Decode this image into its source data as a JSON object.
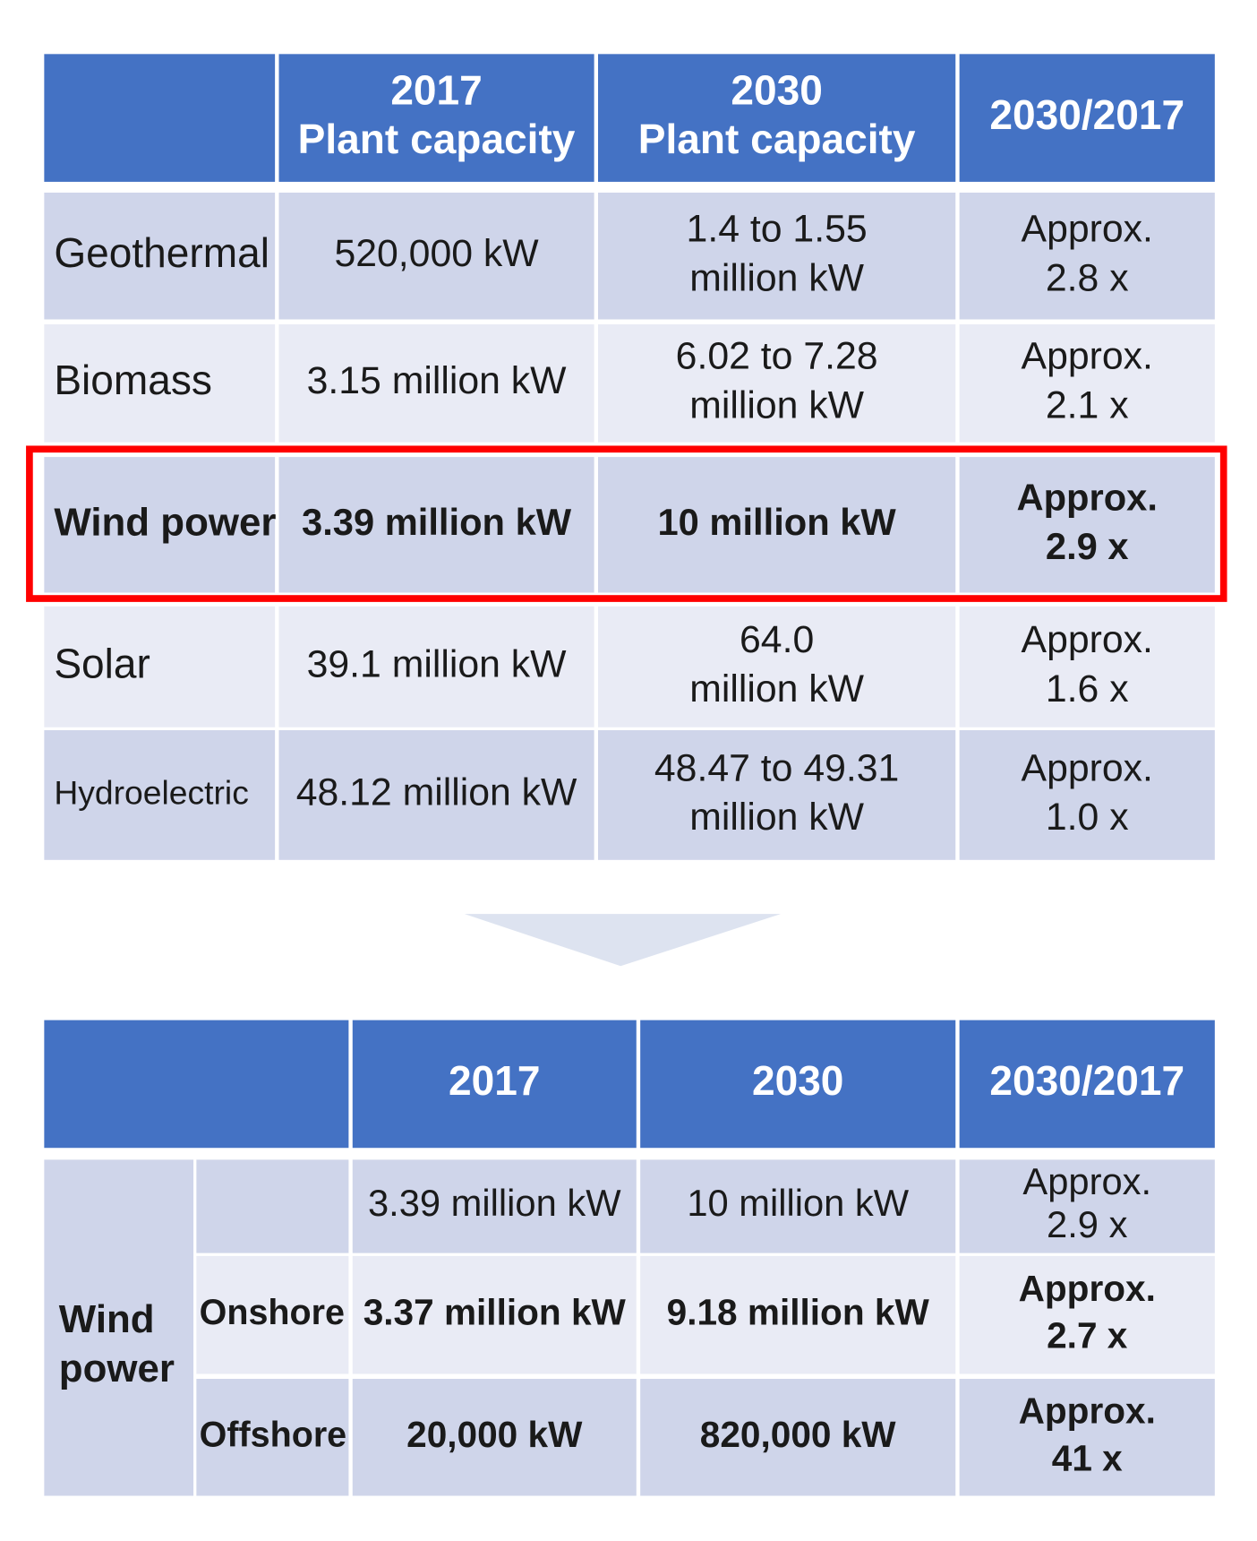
{
  "table1": {
    "header": [
      [
        "2017",
        "Plant capacity"
      ],
      [
        "2030",
        "Plant capacity"
      ],
      [
        "2030/2017"
      ]
    ],
    "rows": [
      [
        [
          "Geothermal"
        ],
        [
          "520,000 kW"
        ],
        [
          "1.4 to 1.55",
          "million kW"
        ],
        [
          "Approx.",
          "2.8 x"
        ]
      ],
      [
        [
          "Biomass"
        ],
        [
          "3.15 million kW"
        ],
        [
          "6.02 to 7.28",
          "million kW"
        ],
        [
          "Approx.",
          "2.1 x"
        ]
      ],
      [
        [
          "Wind power"
        ],
        [
          "3.39 million kW"
        ],
        [
          "10 million kW"
        ],
        [
          "Approx.",
          "2.9 x"
        ]
      ],
      [
        [
          "Solar"
        ],
        [
          "39.1 million kW"
        ],
        [
          "64.0",
          "million kW"
        ],
        [
          "Approx.",
          "1.6 x"
        ]
      ],
      [
        [
          "Hydroelectric"
        ],
        [
          "48.12 million kW"
        ],
        [
          "48.47 to 49.31",
          "million kW"
        ],
        [
          "Approx.",
          "1.0 x"
        ]
      ]
    ]
  },
  "table2": {
    "header": [
      "2017",
      "2030",
      "2030/2017"
    ],
    "group": [
      "Wind",
      "power"
    ],
    "total": [
      [
        "3.39 million kW"
      ],
      [
        "10 million kW"
      ],
      [
        "Approx.",
        "2.9 x"
      ]
    ],
    "rows": [
      [
        [
          "Onshore"
        ],
        [
          "3.37 million kW"
        ],
        [
          "9.18 million kW"
        ],
        [
          "Approx.",
          "2.7 x"
        ]
      ],
      [
        [
          "Offshore"
        ],
        [
          "20,000 kW"
        ],
        [
          "820,000 kW"
        ],
        [
          "Approx.",
          "41 x"
        ]
      ]
    ]
  }
}
